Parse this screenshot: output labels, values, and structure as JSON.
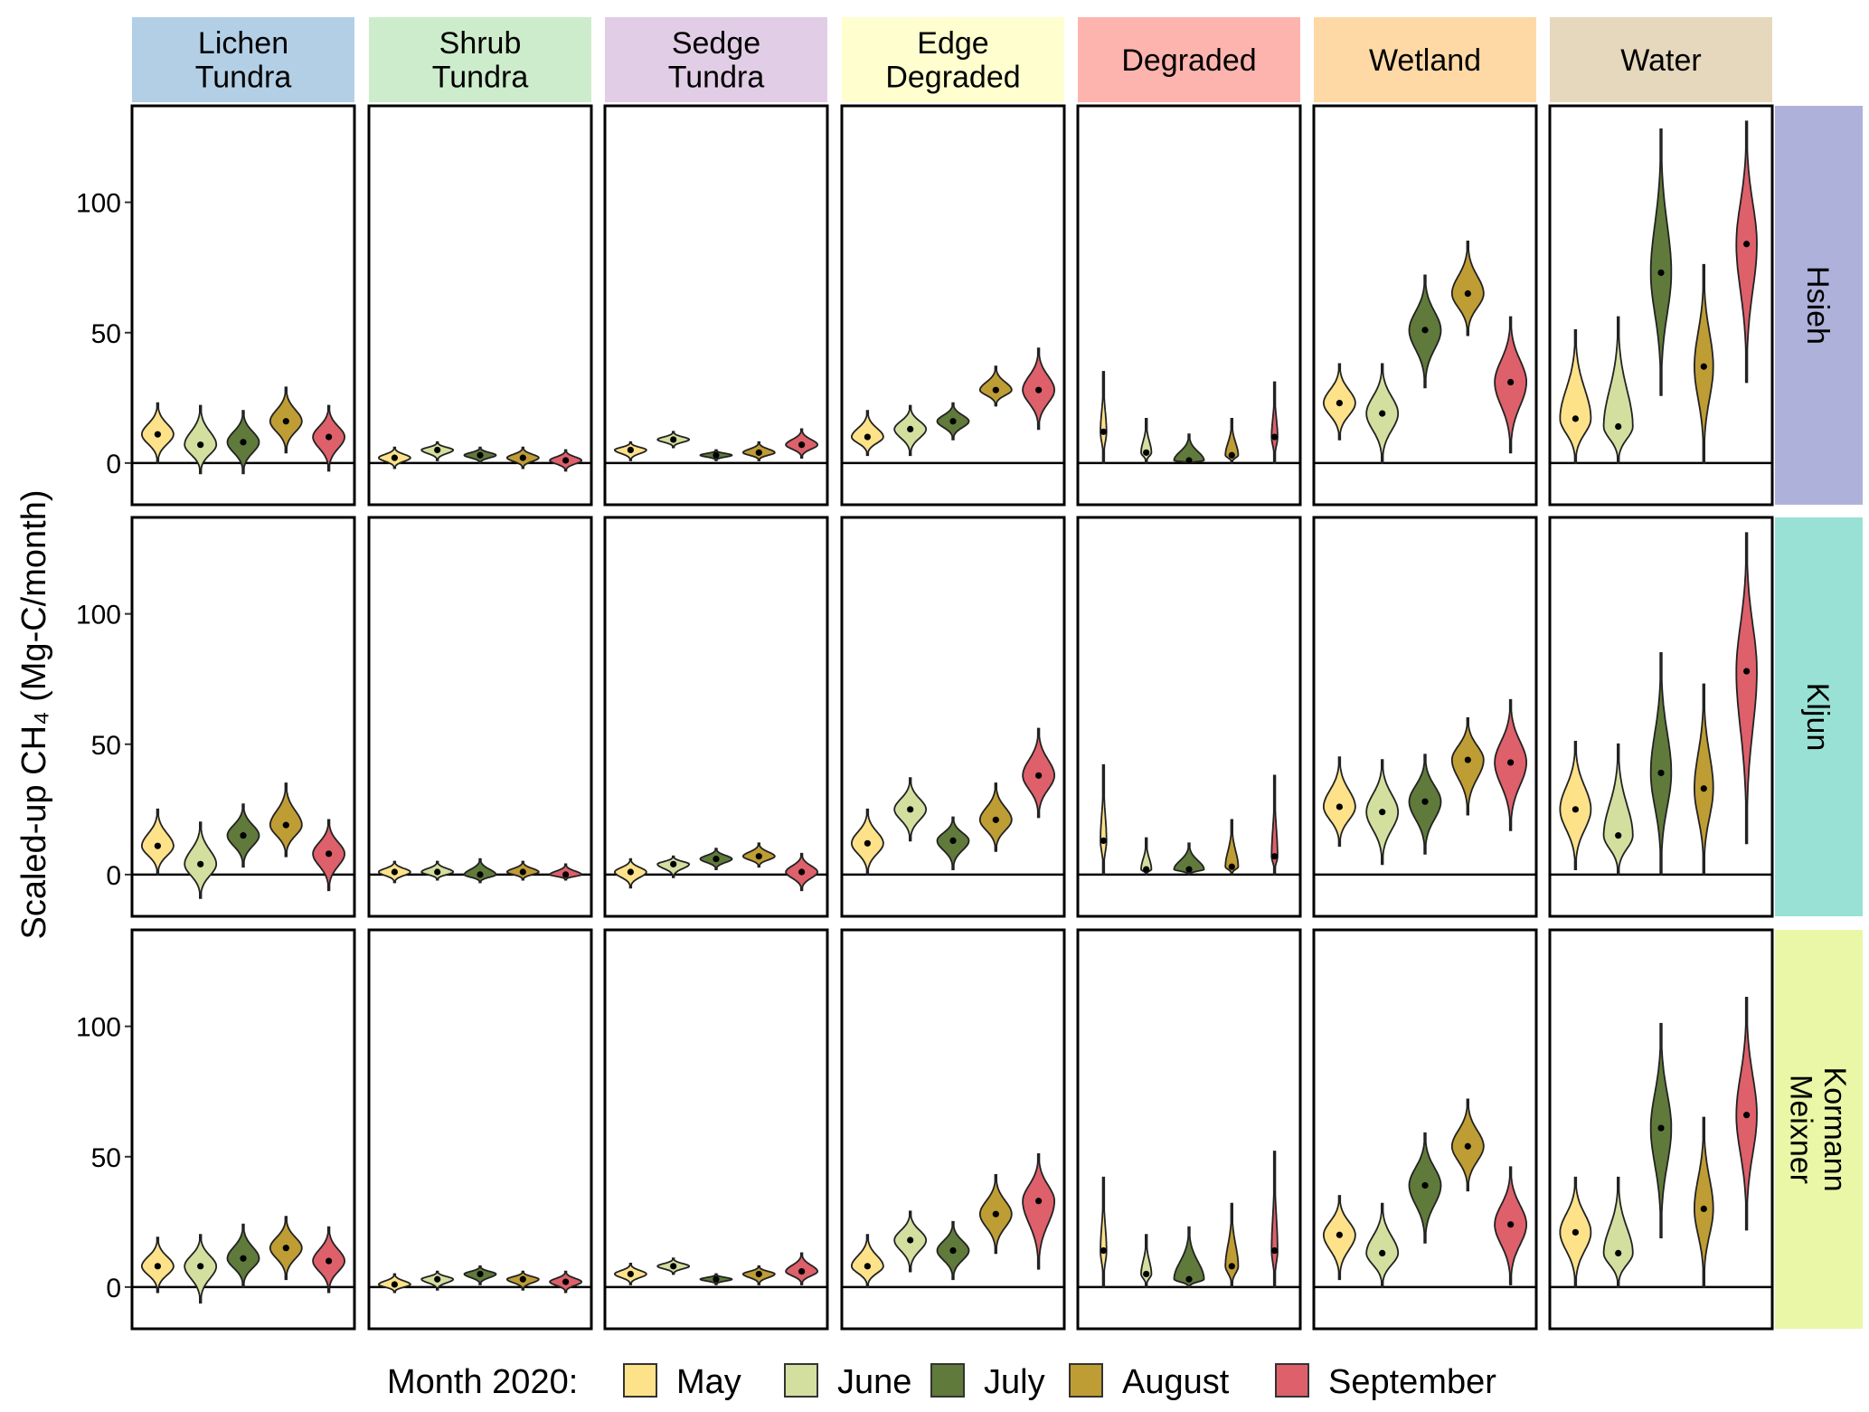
{
  "chart_data": {
    "type": "violin",
    "ylabel": "Scaled-up CH₄ (Mg-C/month)",
    "xlabel": "",
    "ylim": [
      -16,
      137
    ],
    "yticks": [
      0,
      50,
      100
    ],
    "grid": false,
    "legend": {
      "title": "Month 2020:",
      "position": "bottom"
    },
    "months": [
      "May",
      "June",
      "July",
      "August",
      "September"
    ],
    "month_colors": {
      "May": "#fde28a",
      "June": "#d3df9f",
      "July": "#5f7a3a",
      "August": "#bf9d35",
      "September": "#dd606b"
    },
    "columns": [
      {
        "label": "Lichen\nTundra",
        "color": "#b3cfe5"
      },
      {
        "label": "Shrub\nTundra",
        "color": "#cdeccb"
      },
      {
        "label": "Sedge\nTundra",
        "color": "#e2cde6"
      },
      {
        "label": "Edge\nDegraded",
        "color": "#fefecf"
      },
      {
        "label": "Degraded",
        "color": "#fdb4ae"
      },
      {
        "label": "Wetland",
        "color": "#fed9a6"
      },
      {
        "label": "Water",
        "color": "#e6d8bd"
      }
    ],
    "rows": [
      {
        "label": "Hsieh",
        "color": "#aeb1da",
        "panels": [
          [
            [
              11,
              0,
              23
            ],
            [
              7,
              -4,
              22
            ],
            [
              8,
              -4,
              20
            ],
            [
              16,
              4,
              29
            ],
            [
              10,
              -3,
              22
            ]
          ],
          [
            [
              2,
              -2,
              6
            ],
            [
              5,
              1,
              8
            ],
            [
              3,
              0,
              6
            ],
            [
              2,
              -2,
              6
            ],
            [
              1,
              -3,
              5
            ]
          ],
          [
            [
              5,
              1,
              8
            ],
            [
              9,
              6,
              12
            ],
            [
              3,
              1,
              5
            ],
            [
              4,
              1,
              8
            ],
            [
              7,
              2,
              13
            ]
          ],
          [
            [
              10,
              3,
              20
            ],
            [
              13,
              3,
              22
            ],
            [
              16,
              9,
              23
            ],
            [
              28,
              22,
              37
            ],
            [
              28,
              13,
              44
            ]
          ],
          [
            [
              12,
              0,
              35
            ],
            [
              4,
              0,
              17
            ],
            [
              1,
              0,
              11
            ],
            [
              3,
              0,
              17
            ],
            [
              10,
              0,
              31
            ]
          ],
          [
            [
              23,
              9,
              38
            ],
            [
              19,
              0,
              38
            ],
            [
              51,
              29,
              72
            ],
            [
              65,
              49,
              85
            ],
            [
              31,
              4,
              56
            ]
          ],
          [
            [
              17,
              0,
              51
            ],
            [
              14,
              0,
              56
            ],
            [
              73,
              26,
              128
            ],
            [
              37,
              0,
              76
            ],
            [
              84,
              31,
              131
            ]
          ]
        ]
      },
      {
        "label": "Kljun",
        "color": "#99e1d5",
        "panels": [
          [
            [
              11,
              0,
              25
            ],
            [
              4,
              -9,
              20
            ],
            [
              15,
              3,
              27
            ],
            [
              19,
              7,
              35
            ],
            [
              8,
              -6,
              21
            ]
          ],
          [
            [
              1,
              -3,
              5
            ],
            [
              1,
              -2,
              5
            ],
            [
              0,
              -3,
              6
            ],
            [
              1,
              -2,
              5
            ],
            [
              0,
              -2,
              4
            ]
          ],
          [
            [
              1,
              -5,
              6
            ],
            [
              4,
              -1,
              7
            ],
            [
              6,
              2,
              10
            ],
            [
              7,
              3,
              12
            ],
            [
              1,
              -6,
              8
            ]
          ],
          [
            [
              12,
              0,
              25
            ],
            [
              25,
              13,
              37
            ],
            [
              13,
              2,
              22
            ],
            [
              21,
              9,
              35
            ],
            [
              38,
              22,
              56
            ]
          ],
          [
            [
              13,
              0,
              42
            ],
            [
              2,
              0,
              14
            ],
            [
              2,
              0,
              12
            ],
            [
              3,
              0,
              21
            ],
            [
              7,
              0,
              38
            ]
          ],
          [
            [
              26,
              11,
              45
            ],
            [
              24,
              4,
              44
            ],
            [
              28,
              8,
              46
            ],
            [
              44,
              23,
              60
            ],
            [
              43,
              17,
              67
            ]
          ],
          [
            [
              25,
              2,
              51
            ],
            [
              15,
              0,
              50
            ],
            [
              39,
              0,
              85
            ],
            [
              33,
              0,
              73
            ],
            [
              78,
              12,
              131
            ]
          ]
        ]
      },
      {
        "label": "Kormann\nMeixner",
        "color": "#e9f7a6",
        "panels": [
          [
            [
              8,
              -2,
              19
            ],
            [
              8,
              -6,
              20
            ],
            [
              11,
              0,
              24
            ],
            [
              15,
              3,
              27
            ],
            [
              10,
              -2,
              23
            ]
          ],
          [
            [
              1,
              -2,
              5
            ],
            [
              3,
              -1,
              6
            ],
            [
              5,
              1,
              8
            ],
            [
              3,
              -1,
              6
            ],
            [
              2,
              -2,
              6
            ]
          ],
          [
            [
              5,
              1,
              9
            ],
            [
              8,
              5,
              11
            ],
            [
              3,
              1,
              5
            ],
            [
              5,
              1,
              8
            ],
            [
              6,
              1,
              13
            ]
          ],
          [
            [
              8,
              0,
              20
            ],
            [
              18,
              6,
              29
            ],
            [
              14,
              3,
              25
            ],
            [
              28,
              13,
              43
            ],
            [
              33,
              7,
              51
            ]
          ],
          [
            [
              14,
              0,
              42
            ],
            [
              5,
              0,
              20
            ],
            [
              3,
              0,
              23
            ],
            [
              8,
              0,
              32
            ],
            [
              14,
              0,
              52
            ]
          ],
          [
            [
              20,
              3,
              35
            ],
            [
              13,
              0,
              32
            ],
            [
              39,
              17,
              59
            ],
            [
              54,
              37,
              72
            ],
            [
              24,
              1,
              46
            ]
          ],
          [
            [
              21,
              0,
              42
            ],
            [
              13,
              0,
              42
            ],
            [
              61,
              19,
              101
            ],
            [
              30,
              0,
              65
            ],
            [
              66,
              22,
              111
            ]
          ]
        ]
      }
    ],
    "value_format": "[median, min, max]"
  }
}
